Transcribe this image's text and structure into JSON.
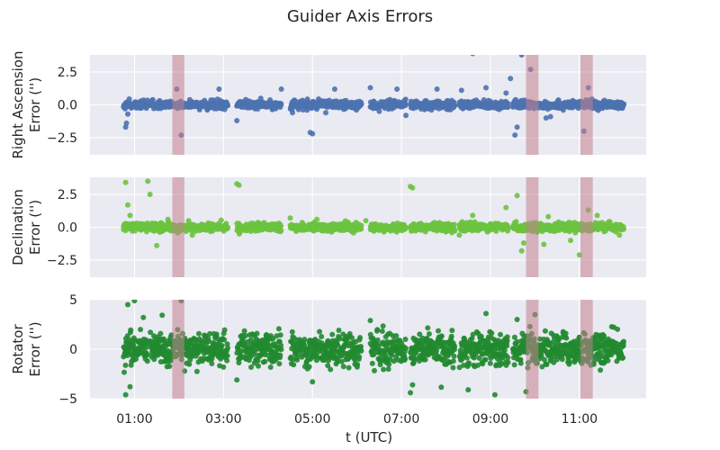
{
  "chart_data": [
    {
      "type": "scatter",
      "title": "Guider Axis Errors",
      "ylabel_lines": [
        "Right Ascension",
        "Error ('')"
      ],
      "ylim": [
        -3.8,
        3.8
      ],
      "yticks": [
        -2.5,
        0.0,
        2.5
      ],
      "ytick_labels": [
        "−2.5",
        "0.0",
        "2.5"
      ],
      "color": "#4c72b0",
      "noise_scale": 0.15,
      "outliers": [
        {
          "t": 0.8,
          "y": -1.7
        },
        {
          "t": 0.82,
          "y": -1.4
        },
        {
          "t": 0.85,
          "y": -0.7
        },
        {
          "t": 1.95,
          "y": 1.2
        },
        {
          "t": 2.05,
          "y": -2.3
        },
        {
          "t": 2.9,
          "y": 1.2
        },
        {
          "t": 3.3,
          "y": -1.2
        },
        {
          "t": 4.3,
          "y": 1.2
        },
        {
          "t": 4.55,
          "y": -0.6
        },
        {
          "t": 4.95,
          "y": -2.1
        },
        {
          "t": 5.0,
          "y": -2.2
        },
        {
          "t": 5.3,
          "y": -0.6
        },
        {
          "t": 5.5,
          "y": 1.2
        },
        {
          "t": 6.3,
          "y": 1.3
        },
        {
          "t": 6.5,
          "y": -0.5
        },
        {
          "t": 6.9,
          "y": 1.2
        },
        {
          "t": 7.1,
          "y": -0.8
        },
        {
          "t": 7.8,
          "y": 1.2
        },
        {
          "t": 8.35,
          "y": 1.1
        },
        {
          "t": 8.6,
          "y": 3.9
        },
        {
          "t": 8.9,
          "y": 1.3
        },
        {
          "t": 9.35,
          "y": 0.9
        },
        {
          "t": 9.45,
          "y": 2.0
        },
        {
          "t": 9.55,
          "y": -2.3
        },
        {
          "t": 9.6,
          "y": -1.7
        },
        {
          "t": 9.7,
          "y": 3.8
        },
        {
          "t": 9.9,
          "y": 2.7
        },
        {
          "t": 10.25,
          "y": -1.0
        },
        {
          "t": 10.35,
          "y": -0.9
        },
        {
          "t": 11.1,
          "y": -2.0
        },
        {
          "t": 11.2,
          "y": 1.3
        }
      ]
    },
    {
      "type": "scatter",
      "ylabel_lines": [
        "Declination",
        "Error ('')"
      ],
      "ylim": [
        -3.8,
        3.8
      ],
      "yticks": [
        -2.5,
        0.0,
        2.5
      ],
      "ytick_labels": [
        "−2.5",
        "0.0",
        "2.5"
      ],
      "color": "#6cc33f",
      "noise_scale": 0.15,
      "outliers": [
        {
          "t": 0.8,
          "y": 3.4
        },
        {
          "t": 0.85,
          "y": 1.7
        },
        {
          "t": 0.9,
          "y": 0.9
        },
        {
          "t": 1.3,
          "y": 3.5
        },
        {
          "t": 1.35,
          "y": 2.5
        },
        {
          "t": 1.5,
          "y": -1.4
        },
        {
          "t": 1.75,
          "y": 0.6
        },
        {
          "t": 2.3,
          "y": -0.6
        },
        {
          "t": 3.3,
          "y": 3.3
        },
        {
          "t": 3.35,
          "y": 3.2
        },
        {
          "t": 4.5,
          "y": 0.7
        },
        {
          "t": 5.1,
          "y": 0.6
        },
        {
          "t": 6.2,
          "y": 0.5
        },
        {
          "t": 7.2,
          "y": 3.1
        },
        {
          "t": 7.25,
          "y": 3.0
        },
        {
          "t": 8.3,
          "y": -0.6
        },
        {
          "t": 8.6,
          "y": 0.9
        },
        {
          "t": 9.35,
          "y": 1.5
        },
        {
          "t": 9.6,
          "y": 2.4
        },
        {
          "t": 9.7,
          "y": -1.8
        },
        {
          "t": 9.75,
          "y": -1.2
        },
        {
          "t": 10.2,
          "y": -1.3
        },
        {
          "t": 10.3,
          "y": 0.8
        },
        {
          "t": 10.8,
          "y": -1.0
        },
        {
          "t": 11.0,
          "y": -2.1
        },
        {
          "t": 11.2,
          "y": 1.3
        },
        {
          "t": 11.4,
          "y": 0.9
        },
        {
          "t": 11.9,
          "y": -0.6
        }
      ]
    },
    {
      "type": "scatter",
      "ylabel_lines": [
        "Rotator",
        "Error ('')"
      ],
      "ylim": [
        -5,
        5
      ],
      "yticks": [
        -5,
        0,
        5
      ],
      "ytick_labels": [
        "−5",
        "0",
        "5"
      ],
      "color": "#218a30",
      "noise_scale": 0.8,
      "outliers": [
        {
          "t": 0.8,
          "y": -4.6
        },
        {
          "t": 0.85,
          "y": 4.5
        },
        {
          "t": 0.9,
          "y": -3.8
        },
        {
          "t": 1.0,
          "y": 4.9
        },
        {
          "t": 1.2,
          "y": 3.2
        },
        {
          "t": 2.05,
          "y": 4.9
        },
        {
          "t": 3.3,
          "y": -3.1
        },
        {
          "t": 5.0,
          "y": -3.3
        },
        {
          "t": 6.3,
          "y": 2.9
        },
        {
          "t": 7.2,
          "y": -4.4
        },
        {
          "t": 7.25,
          "y": -3.6
        },
        {
          "t": 8.5,
          "y": -4.1
        },
        {
          "t": 8.9,
          "y": 3.6
        },
        {
          "t": 9.1,
          "y": -4.6
        },
        {
          "t": 9.6,
          "y": 3.0
        },
        {
          "t": 9.8,
          "y": -4.3
        },
        {
          "t": 10.0,
          "y": 3.5
        }
      ]
    }
  ],
  "xaxis": {
    "label": "t (UTC)",
    "xlim": [
      0.0,
      12.5
    ],
    "ticks": [
      1,
      3,
      5,
      7,
      9,
      11
    ],
    "tick_labels": [
      "01:00",
      "03:00",
      "05:00",
      "07:00",
      "09:00",
      "11:00"
    ]
  },
  "segments": [
    [
      0.75,
      1.3
    ],
    [
      1.35,
      3.1
    ],
    [
      3.3,
      4.3
    ],
    [
      4.5,
      6.1
    ],
    [
      6.3,
      7.1
    ],
    [
      7.2,
      8.2
    ],
    [
      8.3,
      9.4
    ],
    [
      9.5,
      12.0
    ]
  ],
  "highlight_bands": [
    [
      1.85,
      2.12
    ],
    [
      9.8,
      10.08
    ],
    [
      11.02,
      11.3
    ]
  ],
  "colors": {
    "plot_background": "#eaeaf2",
    "grid": "#ffffff",
    "band": "#c3808e"
  }
}
